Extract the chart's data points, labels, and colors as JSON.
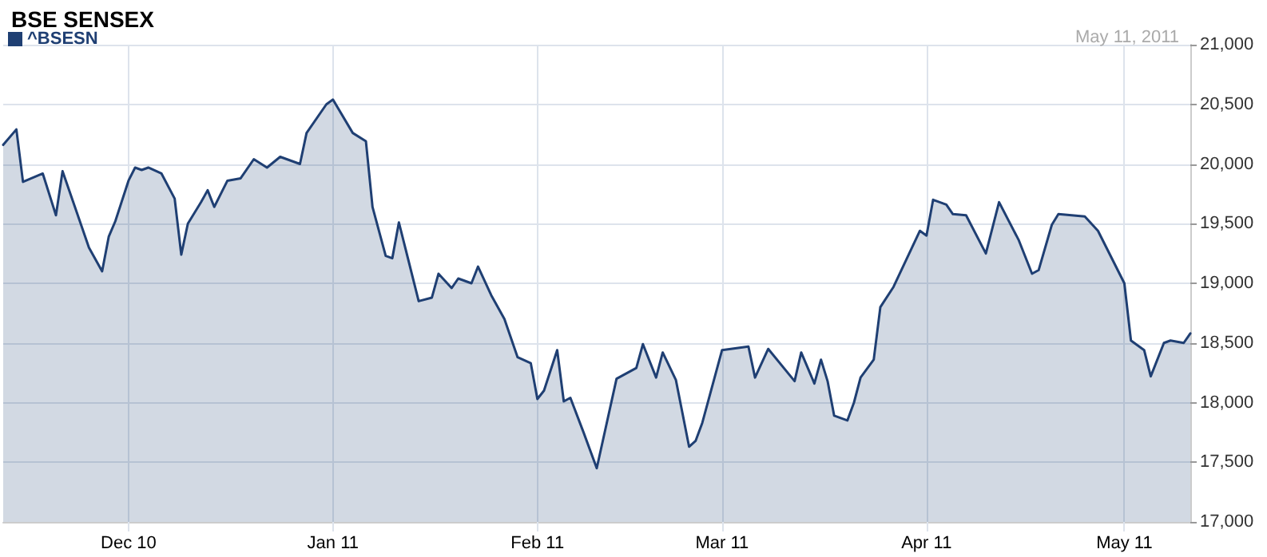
{
  "chart_data": {
    "type": "area",
    "title": "BSE SENSEX",
    "annotations": [
      "May 11, 2011"
    ],
    "legend": "top left",
    "grid": true,
    "marker": "none",
    "line_style": "solid",
    "xlim": [
      "2010-11-12",
      "2011-05-11"
    ],
    "xticks": [
      {
        "value": "2010-12-01",
        "label": "Dec 10"
      },
      {
        "value": "2011-01-01",
        "label": "Jan 11"
      },
      {
        "value": "2011-02-01",
        "label": "Feb 11"
      },
      {
        "value": "2011-03-01",
        "label": "Mar 11"
      },
      {
        "value": "2011-04-01",
        "label": "Apr 11"
      },
      {
        "value": "2011-05-01",
        "label": "May 11"
      }
    ],
    "ylim": [
      17000,
      21000
    ],
    "yticks": [
      {
        "value": 17000,
        "label": "17,000"
      },
      {
        "value": 17500,
        "label": "17,500"
      },
      {
        "value": 18000,
        "label": "18,000"
      },
      {
        "value": 18500,
        "label": "18,500"
      },
      {
        "value": 19000,
        "label": "19,000"
      },
      {
        "value": 19500,
        "label": "19,500"
      },
      {
        "value": 20000,
        "label": "20,000"
      },
      {
        "value": 20500,
        "label": "20,500"
      },
      {
        "value": 21000,
        "label": "21,000"
      }
    ],
    "series": [
      {
        "name": "^BSESN",
        "color": "#1f3f73",
        "x": [
          "2010-11-12",
          "2010-11-14",
          "2010-11-15",
          "2010-11-18",
          "2010-11-20",
          "2010-11-21",
          "2010-11-24",
          "2010-11-25",
          "2010-11-27",
          "2010-11-28",
          "2010-11-29",
          "2010-12-01",
          "2010-12-02",
          "2010-12-03",
          "2010-12-04",
          "2010-12-06",
          "2010-12-08",
          "2010-12-09",
          "2010-12-10",
          "2010-12-12",
          "2010-12-13",
          "2010-12-14",
          "2010-12-16",
          "2010-12-18",
          "2010-12-20",
          "2010-12-22",
          "2010-12-24",
          "2010-12-27",
          "2010-12-28",
          "2010-12-31",
          "2011-01-01",
          "2011-01-04",
          "2011-01-06",
          "2011-01-07",
          "2011-01-09",
          "2011-01-10",
          "2011-01-11",
          "2011-01-14",
          "2011-01-16",
          "2011-01-17",
          "2011-01-19",
          "2011-01-20",
          "2011-01-22",
          "2011-01-23",
          "2011-01-25",
          "2011-01-27",
          "2011-01-29",
          "2011-01-31",
          "2011-02-01",
          "2011-02-02",
          "2011-02-04",
          "2011-02-05",
          "2011-02-06",
          "2011-02-08",
          "2011-02-10",
          "2011-02-13",
          "2011-02-16",
          "2011-02-17",
          "2011-02-19",
          "2011-02-20",
          "2011-02-22",
          "2011-02-24",
          "2011-02-25",
          "2011-02-26",
          "2011-03-01",
          "2011-03-05",
          "2011-03-06",
          "2011-03-08",
          "2011-03-12",
          "2011-03-13",
          "2011-03-15",
          "2011-03-16",
          "2011-03-17",
          "2011-03-18",
          "2011-03-20",
          "2011-03-21",
          "2011-03-22",
          "2011-03-24",
          "2011-03-25",
          "2011-03-27",
          "2011-03-31",
          "2011-04-01",
          "2011-04-02",
          "2011-04-04",
          "2011-04-05",
          "2011-04-07",
          "2011-04-10",
          "2011-04-12",
          "2011-04-15",
          "2011-04-17",
          "2011-04-18",
          "2011-04-20",
          "2011-04-21",
          "2011-04-25",
          "2011-04-27",
          "2011-05-01",
          "2011-05-02",
          "2011-05-04",
          "2011-05-05",
          "2011-05-07",
          "2011-05-08",
          "2011-05-10",
          "2011-05-11"
        ],
        "values": [
          20160,
          20290,
          19850,
          19920,
          19570,
          19940,
          19460,
          19300,
          19100,
          19390,
          19520,
          19860,
          19970,
          19950,
          19970,
          19920,
          19710,
          19240,
          19500,
          19680,
          19780,
          19640,
          19860,
          19880,
          20040,
          19970,
          20060,
          20000,
          20260,
          20500,
          20540,
          20260,
          20190,
          19640,
          19230,
          19210,
          19510,
          18850,
          18880,
          19080,
          18960,
          19040,
          19000,
          19140,
          18900,
          18700,
          18380,
          18330,
          18030,
          18100,
          18440,
          18010,
          18040,
          17750,
          17450,
          18200,
          18290,
          18490,
          18210,
          18420,
          18190,
          17630,
          17680,
          17830,
          18440,
          18470,
          18210,
          18450,
          18180,
          18420,
          18160,
          18360,
          18180,
          17890,
          17850,
          18000,
          18210,
          18360,
          18800,
          18970,
          19440,
          19400,
          19700,
          19660,
          19580,
          19570,
          19250,
          19680,
          19360,
          19080,
          19110,
          19490,
          19580,
          19560,
          19440,
          19000,
          18520,
          18440,
          18220,
          18500,
          18520,
          18500,
          18580
        ]
      }
    ]
  }
}
